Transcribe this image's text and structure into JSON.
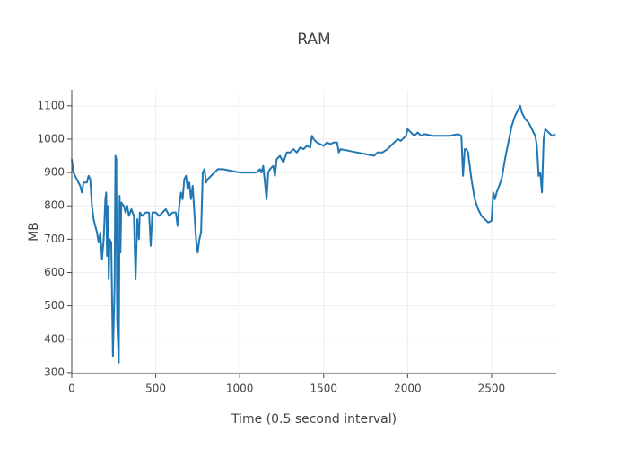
{
  "chart_data": {
    "type": "line",
    "title": "RAM",
    "x_label": "Time (0.5 second interval)",
    "y_label": "MB",
    "xlim": [
      0,
      2885
    ],
    "ylim": [
      297,
      1148
    ],
    "xticks": [
      0,
      500,
      1000,
      1500,
      2000,
      2500
    ],
    "yticks": [
      300,
      400,
      500,
      600,
      700,
      800,
      900,
      1000,
      1100
    ],
    "grid": true,
    "series": [
      {
        "color": "#1f77b4",
        "x": [
          0,
          10,
          30,
          50,
          60,
          70,
          90,
          100,
          110,
          120,
          130,
          140,
          150,
          160,
          170,
          180,
          190,
          200,
          205,
          210,
          215,
          220,
          225,
          235,
          245,
          255,
          260,
          265,
          270,
          280,
          285,
          290,
          295,
          310,
          320,
          330,
          340,
          355,
          370,
          380,
          390,
          400,
          405,
          420,
          440,
          460,
          470,
          480,
          500,
          520,
          540,
          560,
          580,
          600,
          620,
          630,
          640,
          650,
          660,
          670,
          680,
          690,
          700,
          710,
          720,
          730,
          740,
          750,
          760,
          770,
          780,
          790,
          800,
          810,
          830,
          850,
          870,
          900,
          950,
          1000,
          1050,
          1100,
          1120,
          1130,
          1140,
          1150,
          1160,
          1170,
          1180,
          1200,
          1210,
          1220,
          1240,
          1260,
          1280,
          1300,
          1320,
          1340,
          1360,
          1380,
          1400,
          1420,
          1430,
          1440,
          1460,
          1480,
          1500,
          1520,
          1540,
          1560,
          1580,
          1590,
          1600,
          1650,
          1700,
          1750,
          1800,
          1820,
          1850,
          1880,
          1900,
          1920,
          1940,
          1960,
          1990,
          2000,
          2020,
          2040,
          2060,
          2080,
          2100,
          2150,
          2200,
          2250,
          2300,
          2320,
          2330,
          2340,
          2350,
          2360,
          2370,
          2380,
          2400,
          2420,
          2440,
          2460,
          2480,
          2500,
          2510,
          2520,
          2530,
          2560,
          2580,
          2600,
          2620,
          2640,
          2660,
          2670,
          2680,
          2700,
          2720,
          2740,
          2760,
          2770,
          2780,
          2790,
          2800,
          2810,
          2820,
          2840,
          2860,
          2880
        ],
        "values": [
          940,
          900,
          880,
          860,
          840,
          870,
          870,
          890,
          880,
          800,
          760,
          740,
          720,
          690,
          720,
          640,
          700,
          820,
          840,
          650,
          800,
          580,
          700,
          690,
          350,
          560,
          950,
          940,
          460,
          330,
          830,
          660,
          810,
          800,
          780,
          800,
          770,
          790,
          770,
          580,
          760,
          700,
          780,
          770,
          780,
          780,
          680,
          780,
          780,
          770,
          780,
          790,
          770,
          780,
          780,
          740,
          800,
          840,
          820,
          880,
          890,
          850,
          870,
          820,
          860,
          780,
          700,
          660,
          700,
          720,
          900,
          910,
          870,
          880,
          890,
          900,
          910,
          910,
          905,
          900,
          900,
          900,
          910,
          900,
          920,
          870,
          820,
          900,
          910,
          920,
          890,
          940,
          950,
          930,
          960,
          960,
          970,
          960,
          975,
          970,
          980,
          975,
          1010,
          1000,
          990,
          985,
          980,
          990,
          985,
          990,
          990,
          960,
          970,
          965,
          960,
          955,
          950,
          960,
          960,
          970,
          980,
          990,
          1000,
          995,
          1010,
          1030,
          1020,
          1010,
          1020,
          1010,
          1015,
          1010,
          1010,
          1010,
          1015,
          1010,
          890,
          970,
          970,
          960,
          920,
          880,
          820,
          790,
          770,
          760,
          750,
          755,
          840,
          820,
          840,
          880,
          940,
          990,
          1040,
          1070,
          1090,
          1100,
          1080,
          1060,
          1050,
          1030,
          1010,
          980,
          890,
          900,
          840,
          1000,
          1030,
          1020,
          1010,
          1015
        ]
      }
    ]
  }
}
